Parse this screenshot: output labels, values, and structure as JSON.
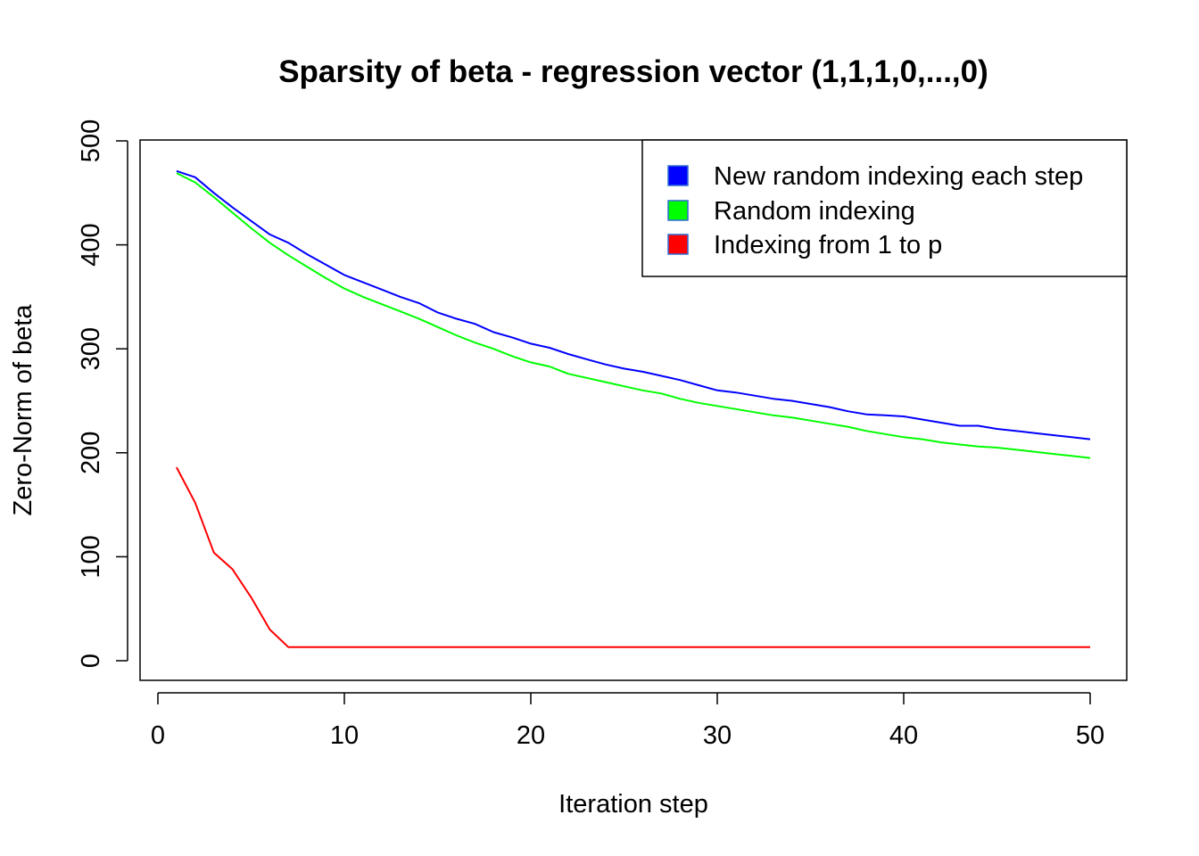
{
  "chart_data": {
    "type": "line",
    "title": "Sparsity of beta - regression vector (1,1,1,0,...,0)",
    "xlabel": "Iteration step",
    "ylabel": "Zero-Norm of beta",
    "xlim": [
      0,
      50
    ],
    "ylim": [
      0,
      500
    ],
    "x_ticks": [
      "0",
      "10",
      "20",
      "30",
      "40",
      "50"
    ],
    "y_ticks": [
      "0",
      "100",
      "200",
      "300",
      "400",
      "500"
    ],
    "grid": false,
    "legend_position": "top-right",
    "series": [
      {
        "name": "New random indexing each step",
        "color": "#0000ff",
        "x": [
          1,
          2,
          3,
          4,
          5,
          6,
          7,
          8,
          9,
          10,
          11,
          12,
          13,
          14,
          15,
          16,
          17,
          18,
          19,
          20,
          21,
          22,
          23,
          24,
          25,
          26,
          27,
          28,
          29,
          30,
          31,
          32,
          33,
          34,
          35,
          36,
          37,
          38,
          39,
          40,
          41,
          42,
          43,
          44,
          45,
          46,
          47,
          48,
          49,
          50
        ],
        "values": [
          471,
          465,
          450,
          436,
          423,
          410,
          402,
          391,
          381,
          371,
          364,
          357,
          350,
          344,
          335,
          329,
          324,
          316,
          311,
          305,
          301,
          295,
          290,
          285,
          281,
          278,
          274,
          270,
          265,
          260,
          258,
          255,
          252,
          250,
          247,
          244,
          240,
          237,
          236,
          235,
          232,
          229,
          226,
          226,
          223,
          221,
          219,
          217,
          215,
          213
        ]
      },
      {
        "name": "Random indexing",
        "color": "#00ff00",
        "x": [
          1,
          2,
          3,
          4,
          5,
          6,
          7,
          8,
          9,
          10,
          11,
          12,
          13,
          14,
          15,
          16,
          17,
          18,
          19,
          20,
          21,
          22,
          23,
          24,
          25,
          26,
          27,
          28,
          29,
          30,
          31,
          32,
          33,
          34,
          35,
          36,
          37,
          38,
          39,
          40,
          41,
          42,
          43,
          44,
          45,
          46,
          47,
          48,
          49,
          50
        ],
        "values": [
          469,
          460,
          446,
          431,
          416,
          402,
          390,
          379,
          368,
          358,
          350,
          343,
          336,
          329,
          321,
          313,
          306,
          300,
          293,
          287,
          283,
          276,
          272,
          268,
          264,
          260,
          257,
          252,
          248,
          245,
          242,
          239,
          236,
          234,
          231,
          228,
          225,
          221,
          218,
          215,
          213,
          210,
          208,
          206,
          205,
          203,
          201,
          199,
          197,
          195
        ]
      },
      {
        "name": "Indexing from 1 to p",
        "color": "#ff0000",
        "x": [
          1,
          2,
          3,
          4,
          5,
          6,
          7,
          8,
          9,
          10,
          11,
          12,
          13,
          14,
          15,
          16,
          17,
          18,
          19,
          20,
          21,
          22,
          23,
          24,
          25,
          26,
          27,
          28,
          29,
          30,
          31,
          32,
          33,
          34,
          35,
          36,
          37,
          38,
          39,
          40,
          41,
          42,
          43,
          44,
          45,
          46,
          47,
          48,
          49,
          50
        ],
        "values": [
          186,
          152,
          104,
          88,
          61,
          30,
          13,
          13,
          13,
          13,
          13,
          13,
          13,
          13,
          13,
          13,
          13,
          13,
          13,
          13,
          13,
          13,
          13,
          13,
          13,
          13,
          13,
          13,
          13,
          13,
          13,
          13,
          13,
          13,
          13,
          13,
          13,
          13,
          13,
          13,
          13,
          13,
          13,
          13,
          13,
          13,
          13,
          13,
          13,
          13
        ]
      }
    ]
  }
}
